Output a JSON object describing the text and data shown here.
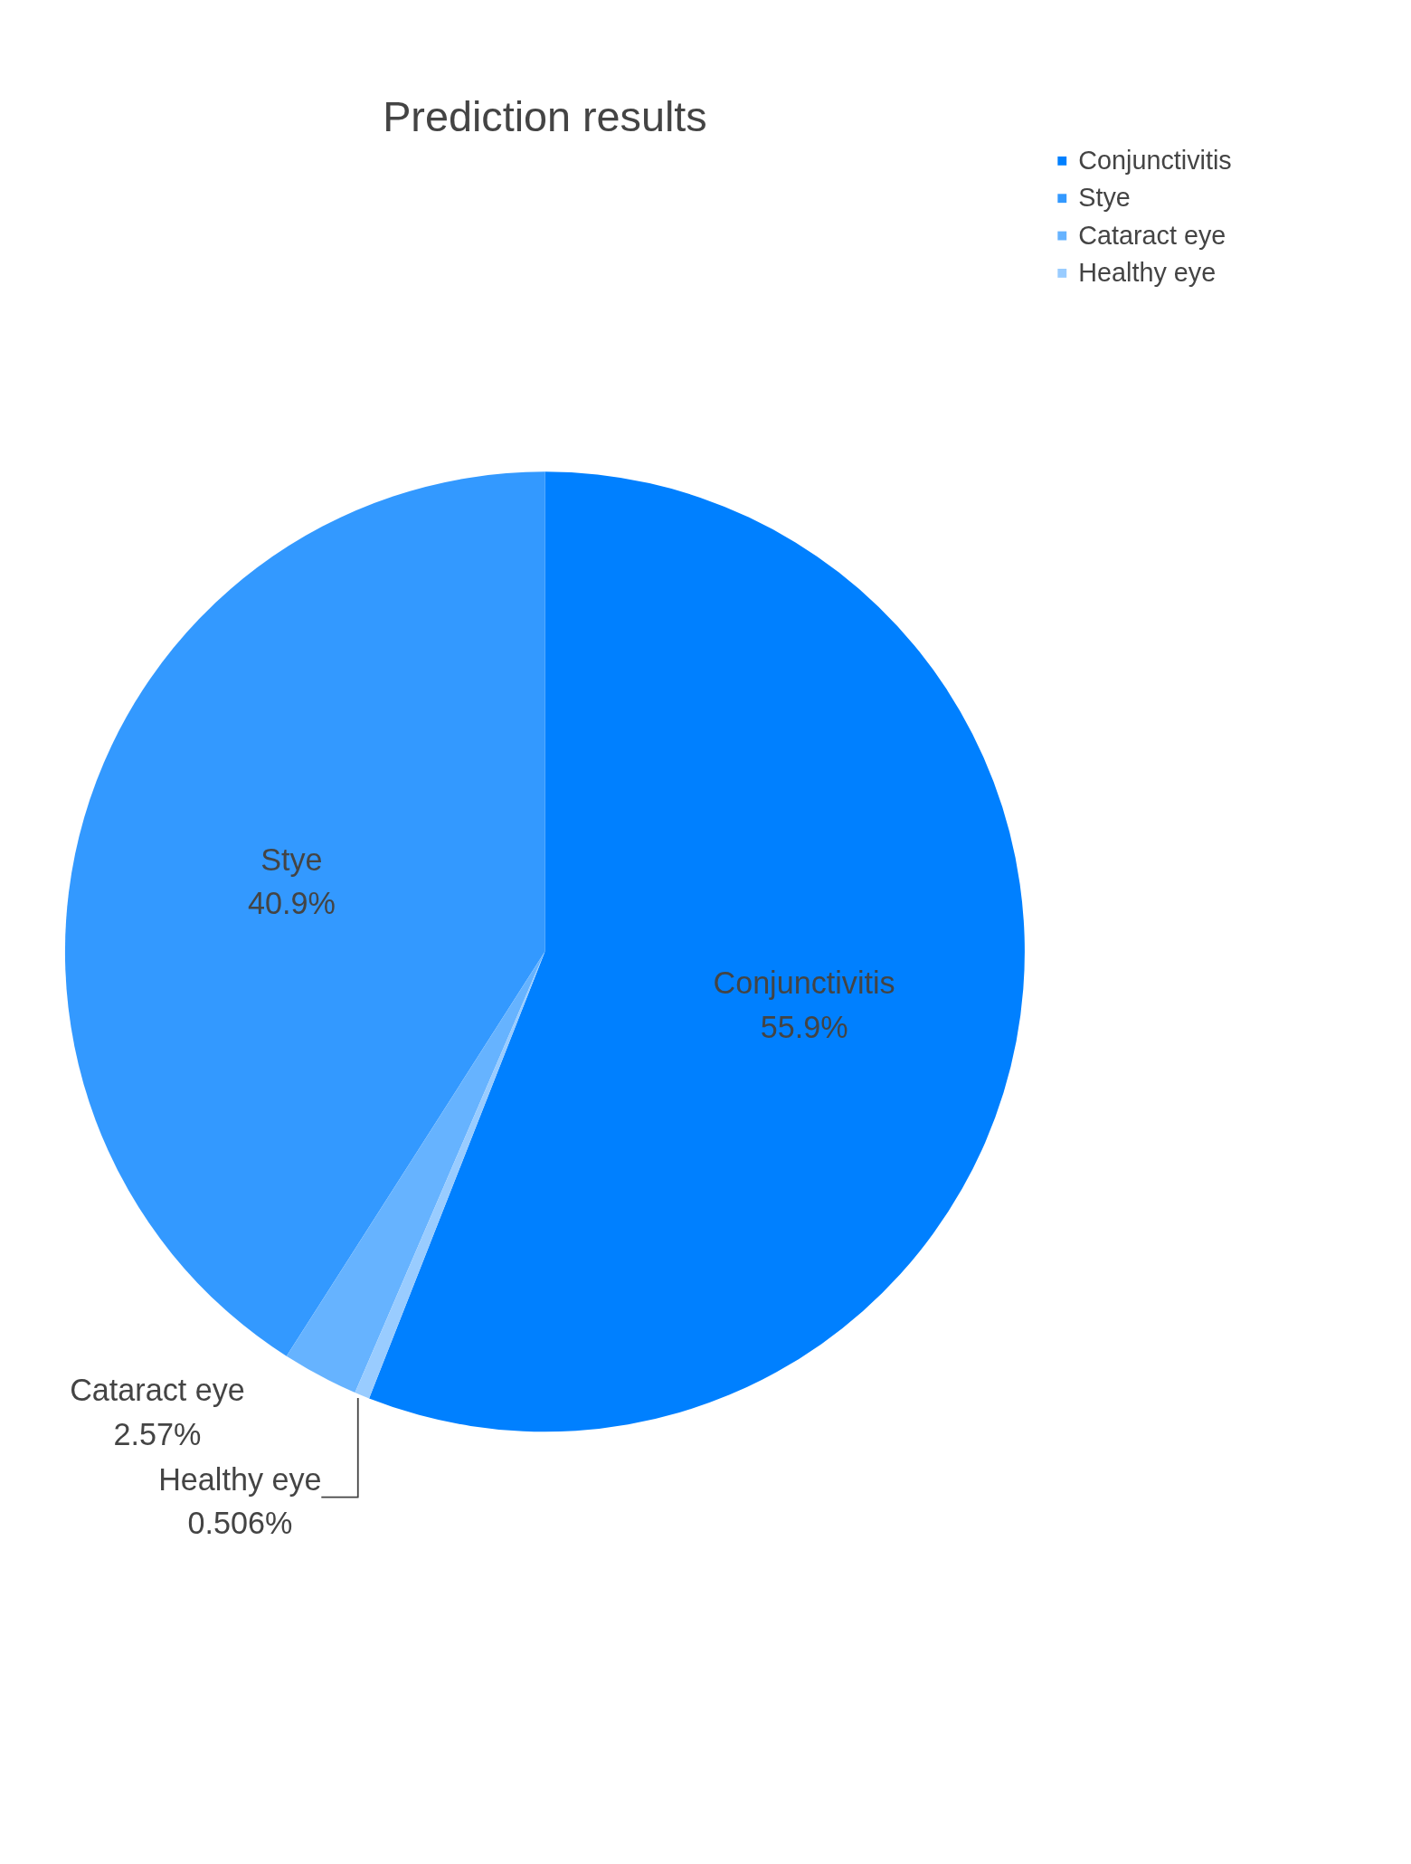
{
  "chart_data": {
    "type": "pie",
    "title": "Prediction results",
    "categories": [
      "Conjunctivitis",
      "Stye",
      "Cataract eye",
      "Healthy eye"
    ],
    "values": [
      55.9,
      40.9,
      2.57,
      0.506
    ],
    "value_labels": [
      "55.9%",
      "40.9%",
      "2.57%",
      "0.506%"
    ],
    "colors": [
      "#0080ff",
      "#3399ff",
      "#66b3ff",
      "#99ccff"
    ],
    "legend": "top right"
  }
}
